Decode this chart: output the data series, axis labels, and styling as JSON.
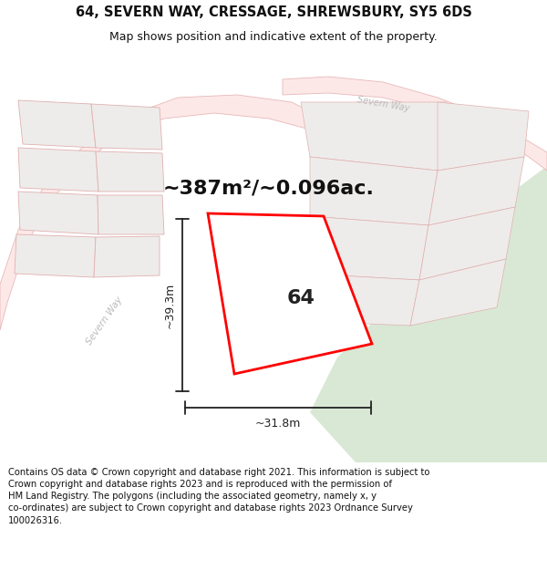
{
  "title_line1": "64, SEVERN WAY, CRESSAGE, SHREWSBURY, SY5 6DS",
  "title_line2": "Map shows position and indicative extent of the property.",
  "area_text": "~387m²/~0.096ac.",
  "label_number": "64",
  "dim_vertical": "~39.3m",
  "dim_horizontal": "~31.8m",
  "footer_lines": [
    "Contains OS data © Crown copyright and database right 2021. This information is subject to Crown copyright and database rights 2023 and is reproduced with the permission of",
    "HM Land Registry. The polygons (including the associated geometry, namely x, y",
    "co-ordinates) are subject to Crown copyright and database rights 2023 Ordnance Survey",
    "100026316."
  ],
  "bg_color": "#ffffff",
  "map_bg": "#f7f5f2",
  "road_color": "#e8b8b8",
  "road_fill": "#fde8e8",
  "block_fill": "#eeecea",
  "block_edge": "#e0b0b0",
  "green_fill": "#d8e8d4",
  "property_fill": "#ffffff",
  "property_outline": "#ff0000",
  "dim_color": "#222222",
  "road_label_color": "#bbbbbb",
  "fig_width": 6.0,
  "fig_height": 6.25,
  "title_fontsize": 10.5,
  "subtitle_fontsize": 9.0,
  "area_fontsize": 16,
  "label_fontsize": 16,
  "dim_fontsize": 9,
  "footer_fontsize": 7.2
}
